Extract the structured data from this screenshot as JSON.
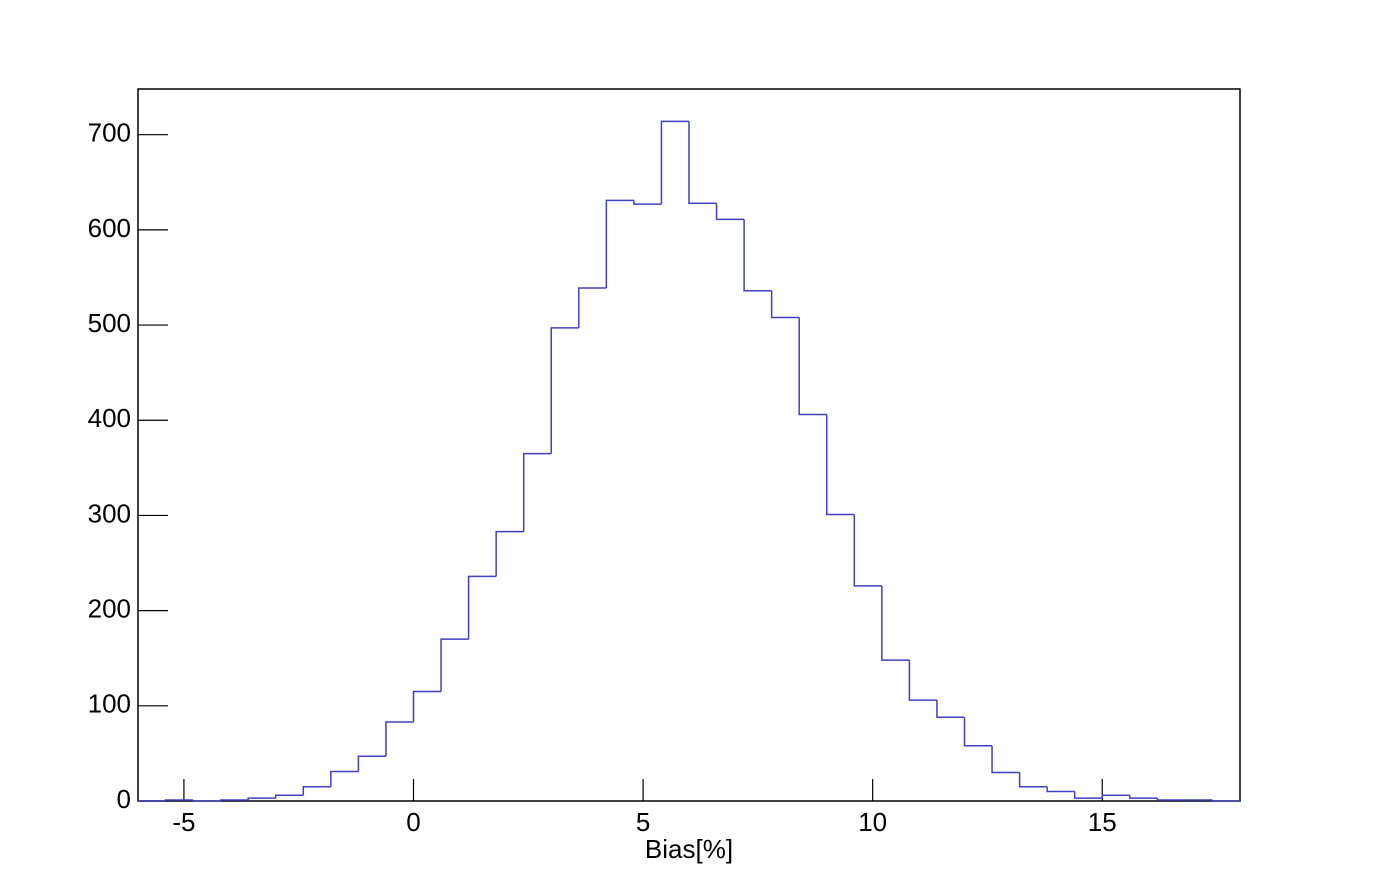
{
  "chart_data": {
    "type": "histogram",
    "x_label": "Bias[%]",
    "bins": [
      -6,
      -5.4,
      -4.8,
      -4.2,
      -3.6,
      -3,
      -2.4,
      -1.8,
      -1.2,
      -0.6,
      0,
      0.6,
      1.2,
      1.8,
      2.4,
      3,
      3.6,
      4.2,
      4.8,
      5.4,
      6,
      6.6,
      7.2,
      7.8,
      8.4,
      9,
      9.6,
      10.2,
      10.8,
      11.4,
      12,
      12.6,
      13.2,
      13.8,
      14.4,
      15,
      15.6,
      16.2,
      16.8,
      17.4,
      18
    ],
    "values": [
      0,
      1,
      0,
      1,
      3,
      6,
      15,
      31,
      47,
      83,
      115,
      170,
      236,
      283,
      365,
      497,
      539,
      631,
      627,
      714,
      628,
      611,
      536,
      508,
      406,
      301,
      226,
      148,
      106,
      88,
      58,
      30,
      15,
      10,
      3,
      6,
      3,
      1,
      1,
      0
    ],
    "color": "#4040c0",
    "xlim": [
      -6,
      18
    ],
    "xticks": [
      -5,
      0,
      5,
      10,
      15
    ],
    "ylim": [
      0,
      748
    ],
    "yticks": [
      0,
      100,
      200,
      300,
      400,
      500,
      600,
      700
    ]
  }
}
